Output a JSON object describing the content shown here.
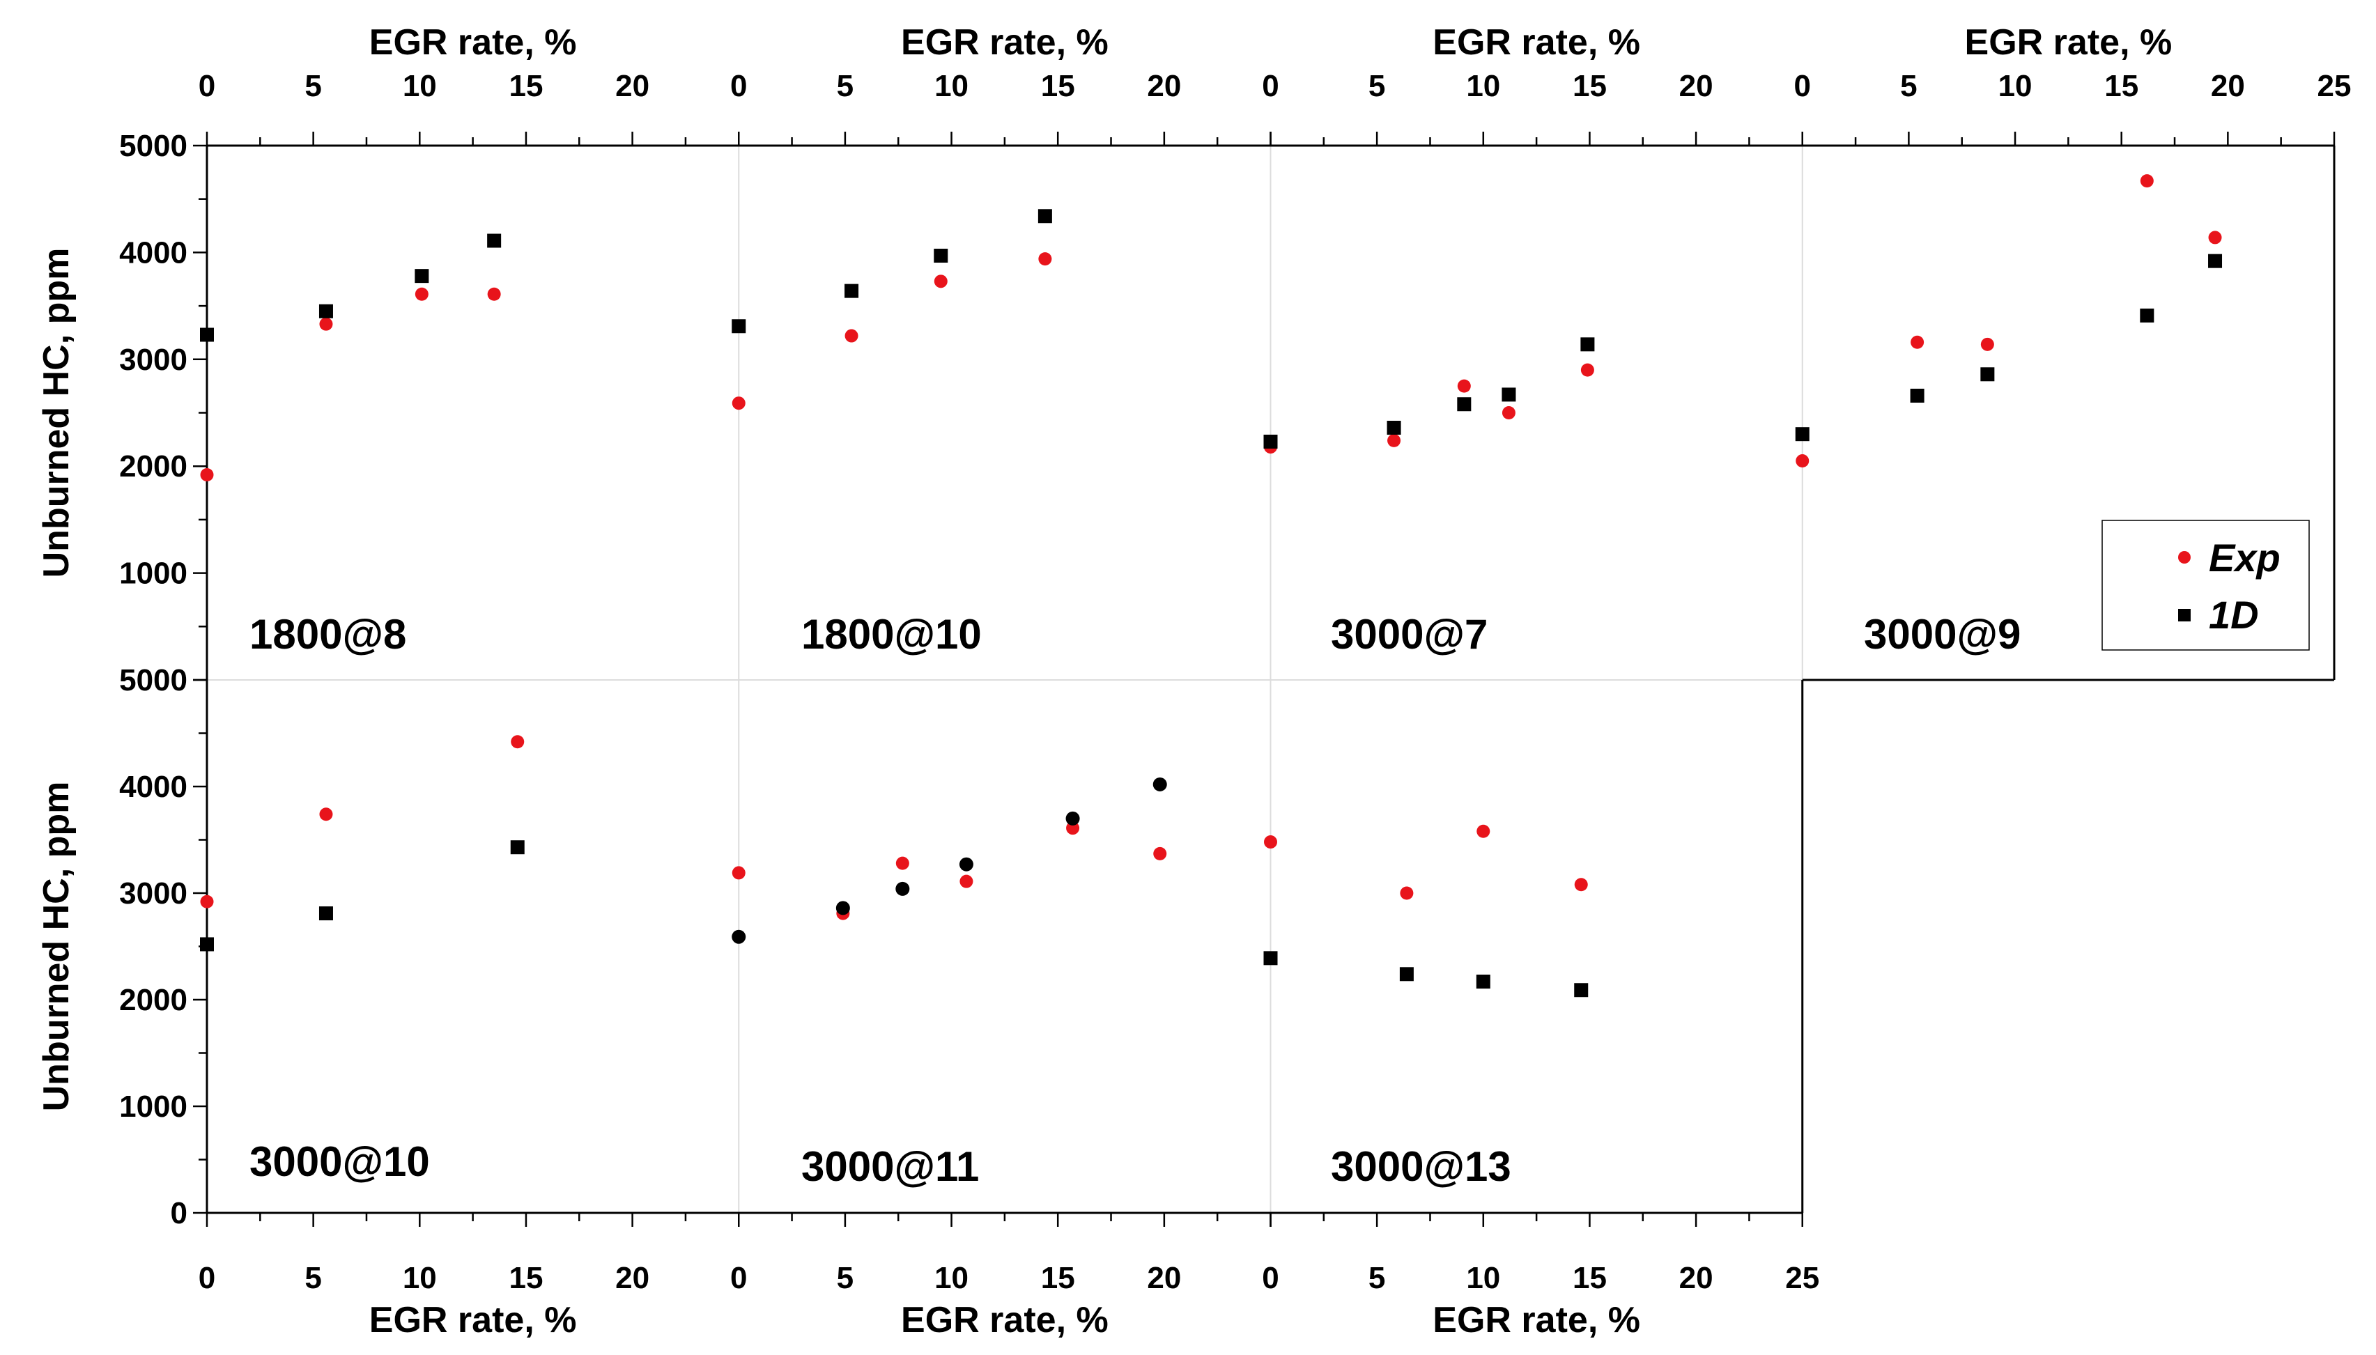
{
  "chart_data": {
    "type": "scatter",
    "x_axis_label": "EGR rate, %",
    "y_axis_label": "Unburned HC, ppm",
    "x_tick_labels": [
      "0",
      "5",
      "10",
      "15",
      "20",
      "25"
    ],
    "y_tick_labels": [
      "0",
      "1000",
      "2000",
      "3000",
      "4000",
      "5000"
    ],
    "xlim_per_panel": [
      0,
      25
    ],
    "ylim": [
      0,
      5000
    ],
    "legend": {
      "placement": "right, top row",
      "entries": [
        {
          "name": "Exp",
          "marker": "circle",
          "color": "#e8141b"
        },
        {
          "name": "1D",
          "marker": "square",
          "color": "#000000"
        }
      ]
    },
    "colors": {
      "exp": "#e8141b",
      "sim": "#000000",
      "grid": "#dcdcdc"
    },
    "panels": [
      {
        "label": "1800@8",
        "row": 0,
        "col": 0,
        "exp": [
          [
            0,
            1920
          ],
          [
            5.6,
            3330
          ],
          [
            10.1,
            3610
          ],
          [
            13.5,
            3610
          ]
        ],
        "sim": [
          [
            0,
            3230
          ],
          [
            5.6,
            3450
          ],
          [
            10.1,
            3780
          ],
          [
            13.5,
            4110
          ]
        ]
      },
      {
        "label": "1800@10",
        "row": 0,
        "col": 1,
        "exp": [
          [
            0,
            2590
          ],
          [
            5.3,
            3220
          ],
          [
            9.5,
            3730
          ],
          [
            14.4,
            3940
          ]
        ],
        "sim": [
          [
            0,
            3310
          ],
          [
            5.3,
            3640
          ],
          [
            9.5,
            3970
          ],
          [
            14.4,
            4340
          ]
        ]
      },
      {
        "label": "3000@7",
        "row": 0,
        "col": 2,
        "exp": [
          [
            0,
            2180
          ],
          [
            5.8,
            2240
          ],
          [
            9.1,
            2750
          ],
          [
            11.2,
            2500
          ],
          [
            14.9,
            2900
          ]
        ],
        "sim": [
          [
            0,
            2230
          ],
          [
            5.8,
            2360
          ],
          [
            9.1,
            2580
          ],
          [
            11.2,
            2670
          ],
          [
            14.9,
            3140
          ]
        ]
      },
      {
        "label": "3000@9",
        "row": 0,
        "col": 3,
        "exp": [
          [
            0,
            2050
          ],
          [
            5.4,
            3160
          ],
          [
            8.7,
            3140
          ],
          [
            16.2,
            4670
          ],
          [
            19.4,
            4140
          ]
        ],
        "sim": [
          [
            0,
            2300
          ],
          [
            5.4,
            2660
          ],
          [
            8.7,
            2860
          ],
          [
            16.2,
            3410
          ],
          [
            19.4,
            3920
          ]
        ]
      },
      {
        "label": "3000@10",
        "row": 1,
        "col": 0,
        "exp": [
          [
            0,
            2920
          ],
          [
            5.6,
            3740
          ],
          [
            14.6,
            4420
          ]
        ],
        "sim": [
          [
            0,
            2520
          ],
          [
            5.6,
            2810
          ],
          [
            14.6,
            3430
          ]
        ]
      },
      {
        "label": "3000@11",
        "row": 1,
        "col": 1,
        "sim_marker": "circle",
        "exp": [
          [
            0,
            3190
          ],
          [
            4.9,
            2810
          ],
          [
            7.7,
            3280
          ],
          [
            10.7,
            3110
          ],
          [
            15.7,
            3610
          ],
          [
            19.8,
            3370
          ]
        ],
        "sim": [
          [
            0,
            2590
          ],
          [
            4.9,
            2860
          ],
          [
            7.7,
            3040
          ],
          [
            10.7,
            3270
          ],
          [
            15.7,
            3700
          ],
          [
            19.8,
            4020
          ]
        ]
      },
      {
        "label": "3000@13",
        "row": 1,
        "col": 2,
        "exp": [
          [
            0,
            3480
          ],
          [
            6.4,
            3000
          ],
          [
            10,
            3580
          ],
          [
            14.6,
            3080
          ]
        ],
        "sim": [
          [
            0,
            2390
          ],
          [
            6.4,
            2240
          ],
          [
            10,
            2170
          ],
          [
            14.6,
            2090
          ]
        ]
      }
    ]
  },
  "texts": {
    "panel_labels": [
      "1800@8",
      "1800@10",
      "3000@7",
      "3000@9",
      "3000@10",
      "3000@11",
      "3000@13"
    ],
    "legend_exp": "Exp",
    "legend_1d": "1D"
  }
}
